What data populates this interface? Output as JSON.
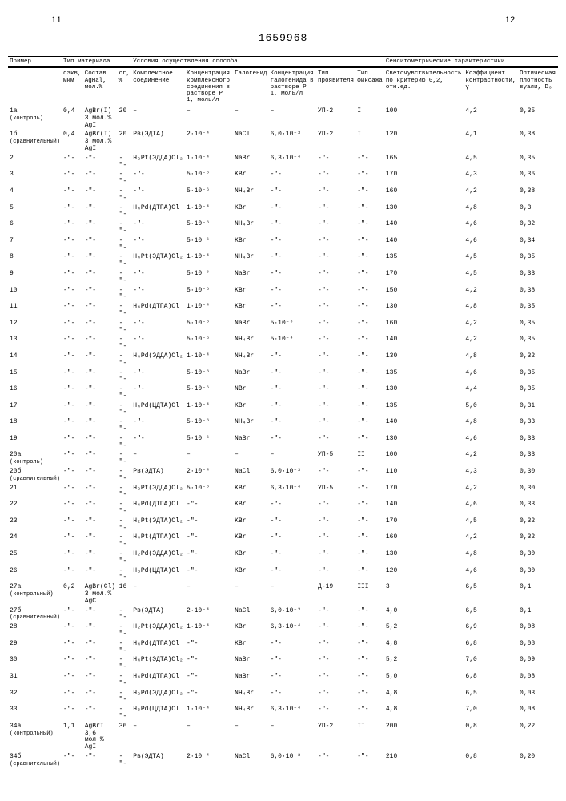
{
  "page_left": "11",
  "page_right": "12",
  "doc_id": "1659968",
  "group_headers": {
    "g1": "Пример",
    "g2": "Тип материала",
    "g3": "Условия осуществления способа",
    "g4": "Сенситометрические характеристики"
  },
  "headers": {
    "c0": "",
    "c1": "dэкв, мкм",
    "c2": "Состав AgHal, мол.%",
    "c3": "cг, %",
    "c4": "Комплексное соединение",
    "c5": "Концентрация комплексного соединения в растворе Р 1, моль/л",
    "c6": "Галогенид",
    "c7": "Концентрация галогенида в растворе Р 1, моль/л",
    "c8": "Тип проявителя",
    "c9": "Тип фиксажа",
    "c10": "Светочувствительность по критерию 0,2, отн.ед.",
    "c11": "Коэффициент контрастности, γ",
    "c12": "Оптическая плотность вуали, D₀"
  },
  "rows": [
    {
      "c0": "1а (контроль)",
      "c1": "0,4",
      "c2": "AgBr(I), 3 мол.% AgI",
      "c3": "20",
      "c4": "–",
      "c5": "–",
      "c6": "–",
      "c7": "–",
      "c8": "УП-2",
      "c9": "I",
      "c10": "100",
      "c11": "4,2",
      "c12": "0,35"
    },
    {
      "c0": "1б (сравнительный)",
      "c1": "0,4",
      "c2": "AgBr(I), 3 мол.% AgI",
      "c3": "20",
      "c4": "Pв(ЭДТА)",
      "c5": "2·10⁻⁴",
      "c6": "NaCl",
      "c7": "6,0·10⁻³",
      "c8": "УП-2",
      "c9": "I",
      "c10": "120",
      "c11": "4,1",
      "c12": "0,38"
    },
    {
      "c0": "2",
      "c1": "-\"-",
      "c2": "-\"-",
      "c3": "-\"-",
      "c4": "H₂Pt(ЭДДА)Cl₂",
      "c5": "1·10⁻⁴",
      "c6": "NaBr",
      "c7": "6,3·10⁻⁴",
      "c8": "-\"-",
      "c9": "-\"-",
      "c10": "165",
      "c11": "4,5",
      "c12": "0,35"
    },
    {
      "c0": "3",
      "c1": "-\"-",
      "c2": "-\"-",
      "c3": "-\"-",
      "c4": "-\"-",
      "c5": "5·10⁻⁵",
      "c6": "KBr",
      "c7": "-\"-",
      "c8": "-\"-",
      "c9": "-\"-",
      "c10": "170",
      "c11": "4,3",
      "c12": "0,36"
    },
    {
      "c0": "4",
      "c1": "-\"-",
      "c2": "-\"-",
      "c3": "-\"-",
      "c4": "-\"-",
      "c5": "5·10⁻⁶",
      "c6": "NH₄Br",
      "c7": "-\"-",
      "c8": "-\"-",
      "c9": "-\"-",
      "c10": "160",
      "c11": "4,2",
      "c12": "0,38"
    },
    {
      "c0": "5",
      "c1": "-\"-",
      "c2": "-\"-",
      "c3": "-\"-",
      "c4": "H₄Pd(ДТПА)Cl",
      "c5": "1·10⁻⁴",
      "c6": "KBr",
      "c7": "-\"-",
      "c8": "-\"-",
      "c9": "-\"-",
      "c10": "130",
      "c11": "4,8",
      "c12": "0,3"
    },
    {
      "c0": "6",
      "c1": "-\"-",
      "c2": "-\"-",
      "c3": "-\"-",
      "c4": "-\"-",
      "c5": "5·10⁻⁵",
      "c6": "NH₄Br",
      "c7": "-\"-",
      "c8": "-\"-",
      "c9": "-\"-",
      "c10": "140",
      "c11": "4,6",
      "c12": "0,32"
    },
    {
      "c0": "7",
      "c1": "-\"-",
      "c2": "-\"-",
      "c3": "-\"-",
      "c4": "-\"-",
      "c5": "5·10⁻⁶",
      "c6": "KBr",
      "c7": "-\"-",
      "c8": "-\"-",
      "c9": "-\"-",
      "c10": "140",
      "c11": "4,6",
      "c12": "0,34"
    },
    {
      "c0": "8",
      "c1": "-\"-",
      "c2": "-\"-",
      "c3": "-\"-",
      "c4": "H₄Pt(ЭДТА)Cl₂",
      "c5": "1·10⁻⁴",
      "c6": "NH₄Br",
      "c7": "-\"-",
      "c8": "-\"-",
      "c9": "-\"-",
      "c10": "135",
      "c11": "4,5",
      "c12": "0,35"
    },
    {
      "c0": "9",
      "c1": "-\"-",
      "c2": "-\"-",
      "c3": "-\"-",
      "c4": "-\"-",
      "c5": "5·10⁻⁵",
      "c6": "NaBr",
      "c7": "-\"-",
      "c8": "-\"-",
      "c9": "-\"-",
      "c10": "170",
      "c11": "4,5",
      "c12": "0,33"
    },
    {
      "c0": "10",
      "c1": "-\"-",
      "c2": "-\"-",
      "c3": "-\"-",
      "c4": "-\"-",
      "c5": "5·10⁻⁶",
      "c6": "KBr",
      "c7": "-\"-",
      "c8": "-\"-",
      "c9": "-\"-",
      "c10": "150",
      "c11": "4,2",
      "c12": "0,38"
    },
    {
      "c0": "11",
      "c1": "-\"-",
      "c2": "-\"-",
      "c3": "-\"-",
      "c4": "H₄Pd(ДТПА)Cl",
      "c5": "1·10⁻⁴",
      "c6": "KBr",
      "c7": "-\"-",
      "c8": "-\"-",
      "c9": "-\"-",
      "c10": "130",
      "c11": "4,8",
      "c12": "0,35"
    },
    {
      "c0": "12",
      "c1": "-\"-",
      "c2": "-\"-",
      "c3": "-\"-",
      "c4": "-\"-",
      "c5": "5·10⁻⁵",
      "c6": "NaBr",
      "c7": "5·10⁻⁵",
      "c8": "-\"-",
      "c9": "-\"-",
      "c10": "160",
      "c11": "4,2",
      "c12": "0,35"
    },
    {
      "c0": "13",
      "c1": "-\"-",
      "c2": "-\"-",
      "c3": "-\"-",
      "c4": "-\"-",
      "c5": "5·10⁻⁶",
      "c6": "NH₄Br",
      "c7": "5·10⁻⁴",
      "c8": "-\"-",
      "c9": "-\"-",
      "c10": "140",
      "c11": "4,2",
      "c12": "0,35"
    },
    {
      "c0": "14",
      "c1": "-\"-",
      "c2": "-\"-",
      "c3": "-\"-",
      "c4": "H₄Pd(ЭДДА)Cl₂",
      "c5": "1·10⁻⁴",
      "c6": "NH₄Br",
      "c7": "-\"-",
      "c8": "-\"-",
      "c9": "-\"-",
      "c10": "130",
      "c11": "4,8",
      "c12": "0,32"
    },
    {
      "c0": "15",
      "c1": "-\"-",
      "c2": "-\"-",
      "c3": "-\"-",
      "c4": "-\"-",
      "c5": "5·10⁻⁵",
      "c6": "NaBr",
      "c7": "-\"-",
      "c8": "-\"-",
      "c9": "-\"-",
      "c10": "135",
      "c11": "4,6",
      "c12": "0,35"
    },
    {
      "c0": "16",
      "c1": "-\"-",
      "c2": "-\"-",
      "c3": "-\"-",
      "c4": "-\"-",
      "c5": "5·10⁻⁶",
      "c6": "NBr",
      "c7": "-\"-",
      "c8": "-\"-",
      "c9": "-\"-",
      "c10": "130",
      "c11": "4,4",
      "c12": "0,35"
    },
    {
      "c0": "17",
      "c1": "-\"-",
      "c2": "-\"-",
      "c3": "-\"-",
      "c4": "H₄Pd(ЦДТА)Cl",
      "c5": "1·10⁻⁴",
      "c6": "KBr",
      "c7": "-\"-",
      "c8": "-\"-",
      "c9": "-\"-",
      "c10": "135",
      "c11": "5,0",
      "c12": "0,31"
    },
    {
      "c0": "18",
      "c1": "-\"-",
      "c2": "-\"-",
      "c3": "-\"-",
      "c4": "-\"-",
      "c5": "5·10⁻⁵",
      "c6": "NH₄Br",
      "c7": "-\"-",
      "c8": "-\"-",
      "c9": "-\"-",
      "c10": "140",
      "c11": "4,8",
      "c12": "0,33"
    },
    {
      "c0": "19",
      "c1": "-\"-",
      "c2": "-\"-",
      "c3": "-\"-",
      "c4": "-\"-",
      "c5": "5·10⁻⁶",
      "c6": "NaBr",
      "c7": "-\"-",
      "c8": "-\"-",
      "c9": "-\"-",
      "c10": "130",
      "c11": "4,6",
      "c12": "0,33"
    },
    {
      "c0": "20а (контроль)",
      "c1": "-\"-",
      "c2": "-\"-",
      "c3": "-\"-",
      "c4": "–",
      "c5": "–",
      "c6": "–",
      "c7": "–",
      "c8": "УП-5",
      "c9": "II",
      "c10": "100",
      "c11": "4,2",
      "c12": "0,33"
    },
    {
      "c0": "20б (сравнительный)",
      "c1": "-\"-",
      "c2": "-\"-",
      "c3": "-\"-",
      "c4": "Pв(ЭДТА)",
      "c5": "2·10⁻⁴",
      "c6": "NaCl",
      "c7": "6,0·10⁻³",
      "c8": "-\"-",
      "c9": "-\"-",
      "c10": "110",
      "c11": "4,3",
      "c12": "0,30"
    },
    {
      "c0": "21",
      "c1": "-\"-",
      "c2": "-\"-",
      "c3": "-\"-",
      "c4": "H₂Pt(ЭДДА)Cl₂",
      "c5": "5·10⁻⁵",
      "c6": "KBr",
      "c7": "6,3·10⁻⁴",
      "c8": "УП-5",
      "c9": "-\"-",
      "c10": "170",
      "c11": "4,2",
      "c12": "0,30"
    },
    {
      "c0": "22",
      "c1": "-\"-",
      "c2": "-\"-",
      "c3": "-\"-",
      "c4": "H₄Pd(ДТПА)Cl",
      "c5": "-\"-",
      "c6": "KBr",
      "c7": "-\"-",
      "c8": "-\"-",
      "c9": "-\"-",
      "c10": "140",
      "c11": "4,6",
      "c12": "0,33"
    },
    {
      "c0": "23",
      "c1": "-\"-",
      "c2": "-\"-",
      "c3": "-\"-",
      "c4": "H₂Pt(ЭДТА)Cl₂",
      "c5": "-\"-",
      "c6": "KBr",
      "c7": "-\"-",
      "c8": "-\"-",
      "c9": "-\"-",
      "c10": "170",
      "c11": "4,5",
      "c12": "0,32"
    },
    {
      "c0": "24",
      "c1": "-\"-",
      "c2": "-\"-",
      "c3": "-\"-",
      "c4": "H₄Pt(ДТПА)Cl",
      "c5": "-\"-",
      "c6": "KBr",
      "c7": "-\"-",
      "c8": "-\"-",
      "c9": "-\"-",
      "c10": "160",
      "c11": "4,2",
      "c12": "0,32"
    },
    {
      "c0": "25",
      "c1": "-\"-",
      "c2": "-\"-",
      "c3": "-\"-",
      "c4": "H₂Pd(ЭДДА)Cl₂",
      "c5": "-\"-",
      "c6": "KBr",
      "c7": "-\"-",
      "c8": "-\"-",
      "c9": "-\"-",
      "c10": "130",
      "c11": "4,8",
      "c12": "0,30"
    },
    {
      "c0": "26",
      "c1": "-\"-",
      "c2": "-\"-",
      "c3": "-\"-",
      "c4": "H₃Pd(ЦДТА)Cl",
      "c5": "-\"-",
      "c6": "KBr",
      "c7": "-\"-",
      "c8": "-\"-",
      "c9": "-\"-",
      "c10": "120",
      "c11": "4,6",
      "c12": "0,30"
    },
    {
      "c0": "27а (контрольный)",
      "c1": "0,2",
      "c2": "AgBr(Cl) 3 мол.% AgCl",
      "c3": "16",
      "c4": "–",
      "c5": "–",
      "c6": "–",
      "c7": "–",
      "c8": "Д-19",
      "c9": "III",
      "c10": "3",
      "c11": "6,5",
      "c12": "0,1"
    },
    {
      "c0": "27б (сравнительный)",
      "c1": "-\"-",
      "c2": "-\"-",
      "c3": "-\"-",
      "c4": "Pв(ЭДТА)",
      "c5": "2·10⁻⁴",
      "c6": "NaCl",
      "c7": "6,0·10⁻³",
      "c8": "-\"-",
      "c9": "-\"-",
      "c10": "4,0",
      "c11": "6,5",
      "c12": "0,1"
    },
    {
      "c0": "28",
      "c1": "-\"-",
      "c2": "-\"-",
      "c3": "-\"-",
      "c4": "H₂Pt(ЭДДА)Cl₂",
      "c5": "1·10⁻⁴",
      "c6": "KBr",
      "c7": "6,3·10⁻⁴",
      "c8": "-\"-",
      "c9": "-\"-",
      "c10": "5,2",
      "c11": "6,9",
      "c12": "0,08"
    },
    {
      "c0": "29",
      "c1": "-\"-",
      "c2": "-\"-",
      "c3": "-\"-",
      "c4": "H₄Pd(ДТПА)Cl",
      "c5": "-\"-",
      "c6": "KBr",
      "c7": "-\"-",
      "c8": "-\"-",
      "c9": "-\"-",
      "c10": "4,8",
      "c11": "6,8",
      "c12": "0,08"
    },
    {
      "c0": "30",
      "c1": "-\"-",
      "c2": "-\"-",
      "c3": "-\"-",
      "c4": "H₄Pt(ЭДТА)Cl₂",
      "c5": "-\"-",
      "c6": "NaBr",
      "c7": "-\"-",
      "c8": "-\"-",
      "c9": "-\"-",
      "c10": "5,2",
      "c11": "7,0",
      "c12": "0,09"
    },
    {
      "c0": "31",
      "c1": "-\"-",
      "c2": "-\"-",
      "c3": "-\"-",
      "c4": "H₄Pd(ДТПА)Cl",
      "c5": "-\"-",
      "c6": "NaBr",
      "c7": "-\"-",
      "c8": "-\"-",
      "c9": "-\"-",
      "c10": "5,0",
      "c11": "6,8",
      "c12": "0,08"
    },
    {
      "c0": "32",
      "c1": "-\"-",
      "c2": "-\"-",
      "c3": "-\"-",
      "c4": "H₂Pd(ЭДДА)Cl₂",
      "c5": "-\"-",
      "c6": "NH₄Br",
      "c7": "-\"-",
      "c8": "-\"-",
      "c9": "-\"-",
      "c10": "4,8",
      "c11": "6,5",
      "c12": "0,03"
    },
    {
      "c0": "33",
      "c1": "-\"-",
      "c2": "-\"-",
      "c3": "-\"-",
      "c4": "H₃Pd(ЦДТА)Cl",
      "c5": "1·10⁻⁴",
      "c6": "NH₄Br",
      "c7": "6,3·10⁻⁴",
      "c8": "-\"-",
      "c9": "-\"-",
      "c10": "4,8",
      "c11": "7,0",
      "c12": "0,08"
    },
    {
      "c0": "34а (контрольный)",
      "c1": "1,1",
      "c2": "AgBrI 3,6 мол.% AgI",
      "c3": "36",
      "c4": "–",
      "c5": "–",
      "c6": "–",
      "c7": "–",
      "c8": "УП-2",
      "c9": "II",
      "c10": "200",
      "c11": "0,8",
      "c12": "0,22"
    },
    {
      "c0": "34б (сравнительный)",
      "c1": "-\"-",
      "c2": "-\"-",
      "c3": "-\"-",
      "c4": "Pв(ЭДТА)",
      "c5": "2·10⁻⁴",
      "c6": "NaCl",
      "c7": "6,0·10⁻³",
      "c8": "-\"-",
      "c9": "-\"-",
      "c10": "210",
      "c11": "0,8",
      "c12": "0,20"
    }
  ]
}
